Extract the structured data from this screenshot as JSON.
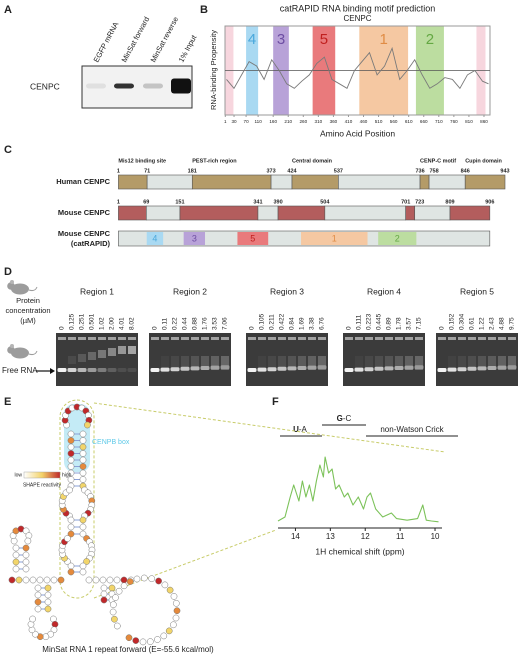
{
  "chart_data": [
    {
      "type": "line",
      "title": "catRAPID RNA binding motif prediction",
      "subtitle": "CENPC",
      "x_label": "Amino Acid Position",
      "y_label": "RNA-binding Propensity",
      "xlim": [
        0,
        880
      ],
      "ylim": [
        0,
        1
      ],
      "xticks": [
        1,
        30,
        70,
        110,
        160,
        210,
        260,
        310,
        360,
        410,
        460,
        510,
        560,
        610,
        660,
        710,
        760,
        810,
        860
      ],
      "threshold": 0.5,
      "x": [
        5,
        30,
        55,
        80,
        105,
        130,
        155,
        180,
        205,
        230,
        255,
        280,
        305,
        330,
        355,
        380,
        405,
        430,
        455,
        480,
        505,
        530,
        555,
        580,
        605,
        630,
        655,
        680,
        705,
        730,
        755,
        780,
        805,
        830,
        855,
        875
      ],
      "series": [
        {
          "color": "#7a7a7a",
          "values": [
            0.4,
            0.3,
            0.45,
            0.6,
            0.55,
            0.4,
            0.62,
            0.5,
            0.35,
            0.3,
            0.38,
            0.45,
            0.58,
            0.65,
            0.4,
            0.35,
            0.3,
            0.5,
            0.6,
            0.7,
            0.45,
            0.55,
            0.75,
            0.4,
            0.5,
            0.62,
            0.45,
            0.3,
            0.35,
            0.42,
            0.4,
            0.3,
            0.45,
            0.5,
            0.38,
            0.35
          ]
        }
      ],
      "motifs": [
        {
          "name": "4",
          "start": 70,
          "end": 110,
          "color": "#a9d9f2",
          "text_color": "#4aa8dc"
        },
        {
          "name": "3",
          "start": 160,
          "end": 212,
          "color": "#b8a2d8",
          "text_color": "#6e4ea3"
        },
        {
          "name": "5",
          "start": 291,
          "end": 366,
          "color": "#e97a7c",
          "text_color": "#c0201f"
        },
        {
          "name": "1",
          "start": 446,
          "end": 608,
          "color": "#f5c8a2",
          "text_color": "#e08c45"
        },
        {
          "name": "2",
          "start": 634,
          "end": 727,
          "color": "#bcdda0",
          "text_color": "#64a843"
        }
      ],
      "highlights": [
        [
          1,
          28
        ],
        [
          835,
          865
        ]
      ],
      "highlight_color": "#f7d6de"
    },
    {
      "type": "line",
      "x_label": "1H chemical shift (ppm)",
      "xlim": [
        14.5,
        9.8
      ],
      "ylim": [
        0,
        1
      ],
      "xticks": [
        14,
        13,
        12,
        11,
        10
      ],
      "x": [
        14.5,
        14.3,
        14.15,
        14.05,
        13.9,
        13.8,
        13.7,
        13.6,
        13.5,
        13.4,
        13.3,
        13.2,
        13.15,
        13.05,
        12.95,
        12.85,
        12.75,
        12.6,
        12.5,
        12.35,
        12.2,
        12.05,
        11.95,
        11.85,
        11.7,
        11.5,
        11.25,
        11.1,
        10.8,
        10.5,
        10.35,
        10.25,
        10.1,
        9.9
      ],
      "series": [
        {
          "color": "#7cc25a",
          "values": [
            0.05,
            0.1,
            0.35,
            0.5,
            0.3,
            0.55,
            0.35,
            0.5,
            0.3,
            0.55,
            0.75,
            0.6,
            0.85,
            0.65,
            0.7,
            0.45,
            0.5,
            0.35,
            0.4,
            0.25,
            0.35,
            0.2,
            0.35,
            0.4,
            0.2,
            0.1,
            0.15,
            0.08,
            0.06,
            0.08,
            0.25,
            0.06,
            0.05,
            0.04
          ]
        }
      ],
      "annotations": [
        {
          "parts": [
            "U",
            "-A"
          ]
        },
        {
          "parts": [
            "G",
            "-C"
          ]
        },
        {
          "parts": [
            "non-Watson Crick"
          ]
        }
      ]
    }
  ],
  "panel_a": {
    "label": "A",
    "lanes": [
      "EGFP mRNA",
      "MinSat forward",
      "MinSat reverse",
      "1% Input"
    ],
    "row_label": "CENPC"
  },
  "panel_b": {
    "label": "B"
  },
  "panel_c": {
    "label": "C",
    "domains": [
      "Mis12 binding site",
      "PEST-rich region",
      "Central domain",
      "CENP-C motif",
      "Cupin domain"
    ],
    "proteins": [
      {
        "name": "Human CENPC",
        "boundaries": [
          1,
          71,
          181,
          373,
          424,
          537,
          736,
          758,
          846,
          943
        ],
        "color": "#b49b68"
      },
      {
        "name": "Mouse CENPC",
        "boundaries": [
          1,
          69,
          151,
          341,
          390,
          504,
          701,
          723,
          809,
          906
        ],
        "color": "#b35d5d"
      }
    ],
    "catrapid_name": [
      "Mouse CENPC",
      "(catRAPID)"
    ]
  },
  "panel_d": {
    "label": "D",
    "y_label": [
      "Protein",
      "concentration",
      "(µM)"
    ],
    "band_label": "Free RNA",
    "regions": [
      {
        "name": "Region 1",
        "concentrations": [
          "0",
          "0.125",
          "0.251",
          "0.501",
          "1.02",
          "2.00",
          "4.01",
          "8.02"
        ]
      },
      {
        "name": "Region 2",
        "concentrations": [
          "0",
          "0.11",
          "0.22",
          "0.44",
          "0.88",
          "1.76",
          "3.53",
          "7.06"
        ]
      },
      {
        "name": "Region 3",
        "concentrations": [
          "0",
          "0.105",
          "0.211",
          "0.422",
          "0.84",
          "1.69",
          "3.38",
          "6.76"
        ]
      },
      {
        "name": "Region 4",
        "concentrations": [
          "0",
          "0.111",
          "0.223",
          "0.445",
          "0.89",
          "1.78",
          "3.57",
          "7.15"
        ]
      },
      {
        "name": "Region 5",
        "concentrations": [
          "0",
          "0.152",
          "0.304",
          "0.61",
          "1.22",
          "2.43",
          "4.88",
          "9.75"
        ]
      }
    ]
  },
  "panel_e": {
    "label": "E",
    "box_label": "CENPB box",
    "legend": {
      "low": "low",
      "high": "high",
      "title": "SHAPE reactivity"
    },
    "caption": "MinSat RNA 1 repeat forward (E=-55.6 kcal/mol)"
  },
  "panel_f": {
    "label": "F"
  }
}
